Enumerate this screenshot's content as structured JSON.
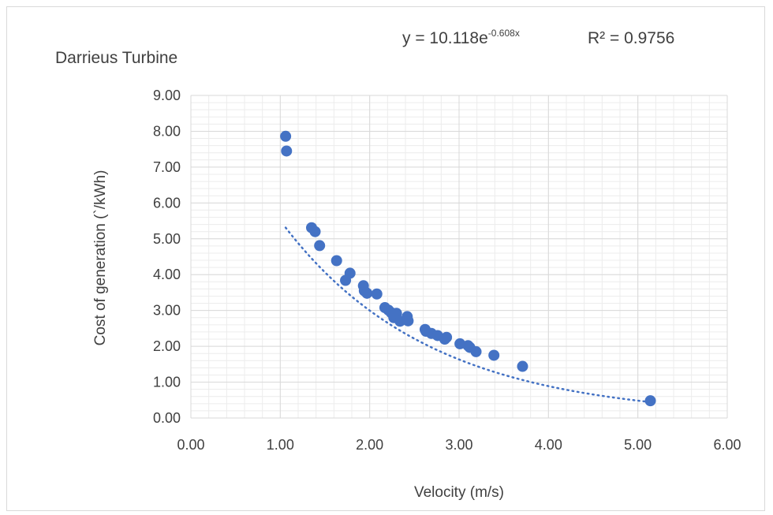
{
  "chart_data": {
    "type": "scatter",
    "title": "Darrieus Turbine",
    "xlabel": "Velocity  (m/s)",
    "ylabel": "Cost of generation (`/kWh)",
    "xlim": [
      0,
      6
    ],
    "ylim": [
      0,
      9
    ],
    "x_ticks": [
      "0.00",
      "1.00",
      "2.00",
      "3.00",
      "4.00",
      "5.00",
      "6.00"
    ],
    "y_ticks": [
      "0.00",
      "1.00",
      "2.00",
      "3.00",
      "4.00",
      "5.00",
      "6.00",
      "7.00",
      "8.00",
      "9.00"
    ],
    "grid": true,
    "legend": "none",
    "colors": {
      "points": "#4472C4",
      "trendline": "#4472C4",
      "grid": "#d9d9d9"
    },
    "series": [
      {
        "points": [
          {
            "x": 1.06,
            "y": 7.86
          },
          {
            "x": 1.07,
            "y": 7.45
          },
          {
            "x": 1.35,
            "y": 5.31
          },
          {
            "x": 1.39,
            "y": 5.2
          },
          {
            "x": 1.44,
            "y": 4.81
          },
          {
            "x": 1.63,
            "y": 4.39
          },
          {
            "x": 1.73,
            "y": 3.84
          },
          {
            "x": 1.78,
            "y": 4.04
          },
          {
            "x": 1.93,
            "y": 3.69
          },
          {
            "x": 1.94,
            "y": 3.55
          },
          {
            "x": 1.97,
            "y": 3.48
          },
          {
            "x": 2.08,
            "y": 3.46
          },
          {
            "x": 2.17,
            "y": 3.08
          },
          {
            "x": 2.21,
            "y": 3.01
          },
          {
            "x": 2.24,
            "y": 2.94
          },
          {
            "x": 2.27,
            "y": 2.8
          },
          {
            "x": 2.3,
            "y": 2.92
          },
          {
            "x": 2.34,
            "y": 2.7
          },
          {
            "x": 2.42,
            "y": 2.83
          },
          {
            "x": 2.43,
            "y": 2.71
          },
          {
            "x": 2.62,
            "y": 2.47
          },
          {
            "x": 2.63,
            "y": 2.42
          },
          {
            "x": 2.69,
            "y": 2.36
          },
          {
            "x": 2.76,
            "y": 2.3
          },
          {
            "x": 2.84,
            "y": 2.2
          },
          {
            "x": 2.86,
            "y": 2.25
          },
          {
            "x": 3.01,
            "y": 2.07
          },
          {
            "x": 3.1,
            "y": 2.02
          },
          {
            "x": 3.12,
            "y": 1.97
          },
          {
            "x": 3.19,
            "y": 1.85
          },
          {
            "x": 3.39,
            "y": 1.75
          },
          {
            "x": 3.71,
            "y": 1.44
          },
          {
            "x": 5.14,
            "y": 0.48
          }
        ]
      }
    ],
    "trendline": {
      "type": "exponential",
      "a": 10.118,
      "b": -0.608,
      "x_range": [
        1.06,
        5.14
      ],
      "equation_prefix": "y = 10.118e",
      "equation_exponent": "-0.608x",
      "r_squared_label": "R² = 0.9756"
    }
  }
}
